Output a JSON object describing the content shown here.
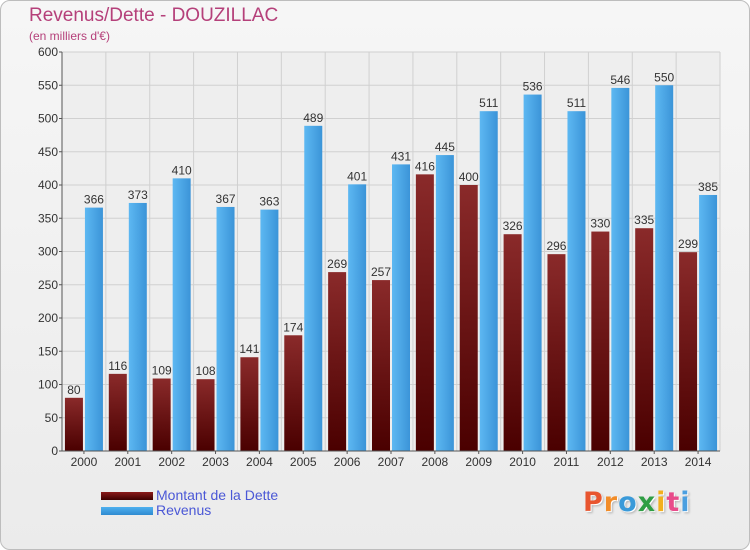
{
  "header": {
    "title": "Revenus/Dette - DOUZILLAC",
    "subtitle": "(en milliers d'€)"
  },
  "legend": {
    "debt_label": "Montant de la Dette",
    "revenue_label": "Revenus"
  },
  "logo": {
    "text": "Proxiti",
    "colors": [
      "#e8552f",
      "#f28c28",
      "#3a9ad9",
      "#2f9e44",
      "#f2b01e",
      "#e84b8a",
      "#4b9fe0"
    ]
  },
  "colors": {
    "debt": "#7a1f1f",
    "revenue": "#4fa8e8",
    "title": "#b5407a",
    "legend_text": "#4a57d6"
  },
  "chart_data": {
    "type": "bar",
    "categories": [
      "2000",
      "2001",
      "2002",
      "2003",
      "2004",
      "2005",
      "2006",
      "2007",
      "2008",
      "2009",
      "2010",
      "2011",
      "2012",
      "2013",
      "2014"
    ],
    "series": [
      {
        "name": "Montant de la Dette",
        "values": [
          80,
          116,
          109,
          108,
          141,
          174,
          269,
          257,
          416,
          400,
          326,
          296,
          330,
          335,
          299
        ]
      },
      {
        "name": "Revenus",
        "values": [
          366,
          373,
          410,
          367,
          363,
          489,
          401,
          431,
          445,
          511,
          536,
          511,
          546,
          550,
          385
        ]
      }
    ],
    "ylim": [
      0,
      600
    ],
    "yticks": [
      0,
      50,
      100,
      150,
      200,
      250,
      300,
      350,
      400,
      450,
      500,
      550,
      600
    ],
    "grid": true,
    "legend_position": "bottom-left"
  }
}
